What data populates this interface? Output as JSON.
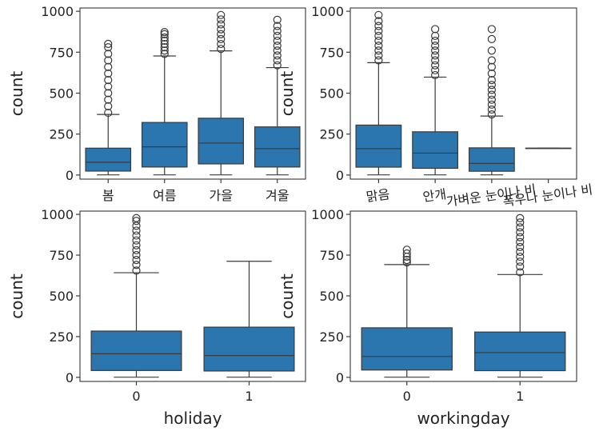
{
  "chart_data": [
    {
      "type": "box",
      "xlabel": "",
      "ylabel": "count",
      "ylim": [
        -25,
        1020
      ],
      "yticks": [
        0,
        250,
        500,
        750,
        1000
      ],
      "categories": [
        "봄",
        "여름",
        "가을",
        "겨울"
      ],
      "boxes": [
        {
          "min": 1,
          "q1": 24,
          "median": 78,
          "q3": 164,
          "max": 370,
          "outliers": [
            380,
            420,
            460,
            500,
            540,
            580,
            620,
            660,
            700,
            740,
            780,
            801
          ]
        },
        {
          "min": 1,
          "q1": 49,
          "median": 172,
          "q3": 321,
          "max": 727,
          "outliers": [
            740,
            760,
            780,
            800,
            820,
            840,
            860,
            873
          ]
        },
        {
          "min": 1,
          "q1": 68,
          "median": 195,
          "q3": 347,
          "max": 758,
          "outliers": [
            770,
            800,
            830,
            860,
            890,
            920,
            950,
            977
          ]
        },
        {
          "min": 1,
          "q1": 49,
          "median": 161,
          "q3": 294,
          "max": 656,
          "outliers": [
            670,
            700,
            730,
            760,
            790,
            820,
            850,
            880,
            910,
            948
          ]
        }
      ]
    },
    {
      "type": "box",
      "xlabel": "",
      "ylabel": "count",
      "ylim": [
        -25,
        1020
      ],
      "yticks": [
        0,
        250,
        500,
        750,
        1000
      ],
      "categories": [
        "맑음",
        "안개",
        "가벼운 눈이나 비",
        "폭우나 눈이나 비"
      ],
      "boxes": [
        {
          "min": 1,
          "q1": 48,
          "median": 161,
          "q3": 305,
          "max": 686,
          "outliers": [
            700,
            730,
            760,
            790,
            820,
            850,
            880,
            910,
            940,
            977
          ]
        },
        {
          "min": 1,
          "q1": 41,
          "median": 134,
          "q3": 264,
          "max": 598,
          "outliers": [
            610,
            640,
            670,
            700,
            730,
            760,
            790,
            820,
            850,
            891
          ]
        },
        {
          "min": 1,
          "q1": 23,
          "median": 71,
          "q3": 166,
          "max": 360,
          "outliers": [
            370,
            400,
            430,
            460,
            490,
            520,
            550,
            580,
            620,
            660,
            700,
            760,
            830,
            891
          ]
        },
        {
          "min": 164,
          "q1": 164,
          "median": 164,
          "q3": 164,
          "max": 164,
          "outliers": []
        }
      ]
    },
    {
      "type": "box",
      "xlabel": "holiday",
      "ylabel": "count",
      "ylim": [
        -25,
        1020
      ],
      "yticks": [
        0,
        250,
        500,
        750,
        1000
      ],
      "categories": [
        "0",
        "1"
      ],
      "boxes": [
        {
          "min": 1,
          "q1": 42,
          "median": 145,
          "q3": 284,
          "max": 642,
          "outliers": [
            655,
            690,
            720,
            750,
            780,
            810,
            840,
            870,
            900,
            930,
            960,
            977
          ]
        },
        {
          "min": 1,
          "q1": 39,
          "median": 134,
          "q3": 308,
          "max": 712,
          "outliers": []
        }
      ]
    },
    {
      "type": "box",
      "xlabel": "workingday",
      "ylabel": "count",
      "ylim": [
        -25,
        1020
      ],
      "yticks": [
        0,
        250,
        500,
        750,
        1000
      ],
      "categories": [
        "0",
        "1"
      ],
      "boxes": [
        {
          "min": 1,
          "q1": 45,
          "median": 128,
          "q3": 304,
          "max": 692,
          "outliers": [
            705,
            720,
            740,
            760,
            783
          ]
        },
        {
          "min": 1,
          "q1": 41,
          "median": 152,
          "q3": 278,
          "max": 631,
          "outliers": [
            645,
            680,
            710,
            740,
            770,
            800,
            830,
            860,
            890,
            920,
            950,
            977
          ]
        }
      ]
    }
  ],
  "colors": {
    "box": "#2c76b0",
    "line": "#3a3a3a"
  }
}
